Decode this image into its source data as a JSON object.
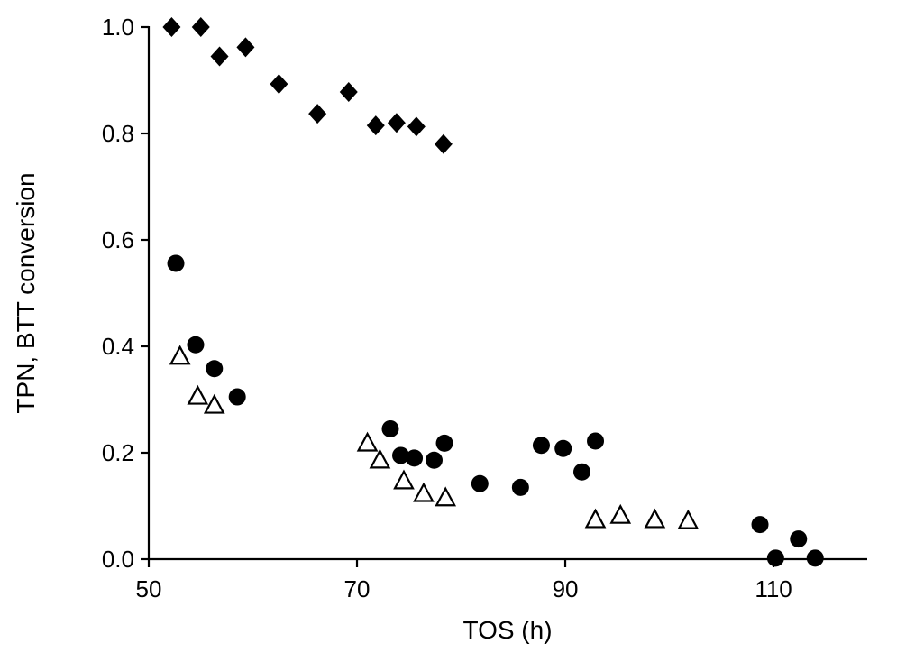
{
  "chart_data": {
    "type": "scatter",
    "title": "",
    "xlabel": "TOS (h)",
    "ylabel": "TPN, BTT conversion",
    "xlim": [
      50,
      119
    ],
    "ylim": [
      0.0,
      1.0
    ],
    "x_ticks": [
      50,
      70,
      90,
      110
    ],
    "y_ticks": [
      0.0,
      0.2,
      0.4,
      0.6,
      0.8,
      1.0
    ],
    "grid": false,
    "legend": "none",
    "background_color": "#ffffff",
    "marker_color": "#000000",
    "series": [
      {
        "name": "filled-diamonds",
        "marker": "diamond-filled",
        "color": "#000000",
        "points": [
          [
            52.2,
            1.0
          ],
          [
            55.0,
            1.0
          ],
          [
            56.8,
            0.945
          ],
          [
            59.3,
            0.962
          ],
          [
            62.5,
            0.893
          ],
          [
            66.2,
            0.837
          ],
          [
            69.2,
            0.878
          ],
          [
            71.8,
            0.815
          ],
          [
            73.8,
            0.82
          ],
          [
            75.7,
            0.813
          ],
          [
            78.3,
            0.78
          ]
        ]
      },
      {
        "name": "filled-circles",
        "marker": "circle-filled",
        "color": "#000000",
        "points": [
          [
            52.6,
            0.556
          ],
          [
            54.5,
            0.403
          ],
          [
            56.3,
            0.358
          ],
          [
            58.5,
            0.305
          ],
          [
            73.2,
            0.245
          ],
          [
            74.2,
            0.195
          ],
          [
            75.5,
            0.19
          ],
          [
            77.4,
            0.186
          ],
          [
            78.4,
            0.218
          ],
          [
            81.8,
            0.142
          ],
          [
            85.7,
            0.135
          ],
          [
            87.7,
            0.214
          ],
          [
            89.8,
            0.208
          ],
          [
            91.6,
            0.164
          ],
          [
            92.9,
            0.222
          ],
          [
            108.7,
            0.065
          ],
          [
            110.2,
            0.002
          ],
          [
            112.4,
            0.038
          ],
          [
            114.0,
            0.002
          ]
        ]
      },
      {
        "name": "open-triangles",
        "marker": "triangle-open",
        "color": "#000000",
        "points": [
          [
            53.0,
            0.38
          ],
          [
            54.7,
            0.305
          ],
          [
            56.3,
            0.288
          ],
          [
            71.0,
            0.217
          ],
          [
            72.2,
            0.185
          ],
          [
            74.5,
            0.146
          ],
          [
            76.4,
            0.122
          ],
          [
            78.5,
            0.114
          ],
          [
            92.9,
            0.073
          ],
          [
            95.3,
            0.081
          ],
          [
            98.6,
            0.073
          ],
          [
            101.8,
            0.071
          ]
        ]
      }
    ]
  }
}
